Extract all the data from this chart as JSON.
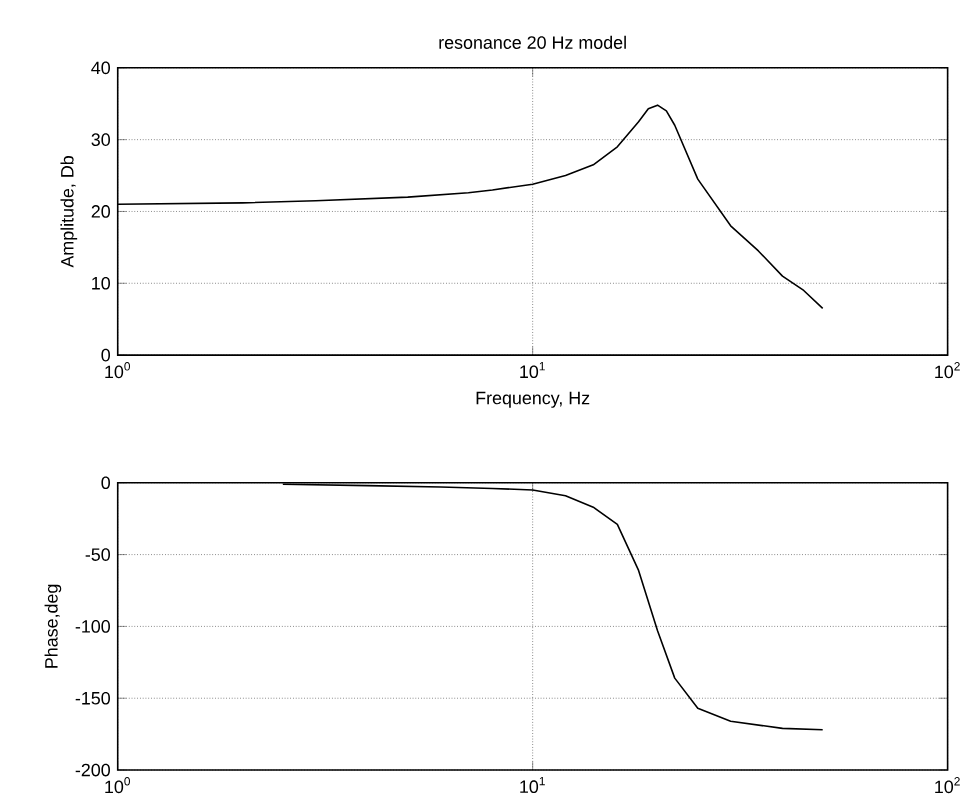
{
  "chart_data": [
    {
      "type": "line",
      "title": "resonance 20 Hz model",
      "xlabel": "Frequency, Hz",
      "ylabel": "Amplitude, Db",
      "log": "x",
      "grid": true,
      "marker": "none",
      "line_style": "solid",
      "xlim": [
        1,
        100
      ],
      "xticks": [
        {
          "value": 1,
          "label": "10$^{0}$"
        },
        {
          "value": 10,
          "label": "10$^{1}$"
        },
        {
          "value": 100,
          "label": "10$^{2}$"
        }
      ],
      "ylim": [
        0,
        40
      ],
      "yticks": [
        0,
        10,
        20,
        30,
        40
      ],
      "series": [
        {
          "color": "#000000",
          "x": [
            1,
            2,
            3,
            5,
            7,
            8,
            10,
            12,
            14,
            16,
            18,
            19,
            20,
            21,
            22,
            25,
            30,
            35,
            40,
            45,
            50
          ],
          "values": [
            21,
            21.2,
            21.5,
            22,
            22.6,
            23,
            23.8,
            25,
            26.5,
            29,
            32.5,
            34.3,
            34.8,
            34,
            32,
            24.5,
            18,
            14.5,
            11,
            9,
            6.5
          ]
        }
      ]
    },
    {
      "type": "line",
      "ylabel": "Phase,deg",
      "log": "x",
      "grid": true,
      "marker": "none",
      "line_style": "solid",
      "xlim": [
        1,
        100
      ],
      "xticks": [
        {
          "value": 1,
          "label": "10$^{0}$"
        },
        {
          "value": 10,
          "label": "10$^{1}$"
        },
        {
          "value": 100,
          "label": "10$^{2}$"
        }
      ],
      "ylim": [
        -200,
        0
      ],
      "yticks": [
        -200,
        -150,
        -100,
        -50,
        0
      ],
      "series": [
        {
          "color": "#000000",
          "x": [
            2.5,
            4,
            6,
            8,
            10,
            12,
            14,
            16,
            18,
            20,
            22,
            25,
            30,
            40,
            50
          ],
          "values": [
            -1,
            -2,
            -3,
            -4,
            -5,
            -9,
            -17,
            -29,
            -61,
            -103,
            -136,
            -157,
            -166,
            -171,
            -172
          ]
        }
      ]
    }
  ]
}
